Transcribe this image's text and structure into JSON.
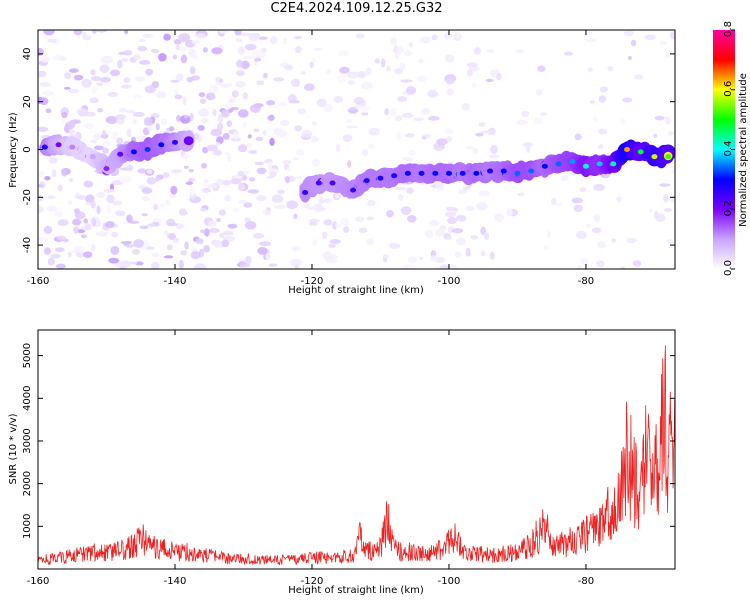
{
  "title": "C2E4.2024.109.12.25.G32",
  "chart_data": [
    {
      "type": "heatmap",
      "xlabel": "Height of straight line (km)",
      "ylabel": "Frequency (Hz)",
      "xlim": [
        -160,
        -67
      ],
      "ylim": [
        -50,
        50
      ],
      "xticks": [
        -160,
        -140,
        -120,
        -100,
        -80
      ],
      "yticks": [
        -40,
        -20,
        0,
        20,
        40
      ],
      "colorbar": {
        "label": "Normalized spectral amplitude",
        "range": [
          0,
          0.8
        ],
        "ticks": [
          0.0,
          0.2,
          0.4,
          0.6,
          0.8
        ],
        "tick_labels": [
          "0.0",
          "0.2",
          "0.4",
          "0.6",
          "0.8"
        ],
        "colors": [
          "#ffffff",
          "#c9a3ff",
          "#7a00ff",
          "#0000ff",
          "#00ffff",
          "#00ff00",
          "#ffff00",
          "#ff0000",
          "#ff00a0"
        ]
      },
      "ridge": [
        {
          "x": -159,
          "y": 1,
          "a": 0.28
        },
        {
          "x": -157,
          "y": 2,
          "a": 0.2
        },
        {
          "x": -155,
          "y": 1,
          "a": 0.12
        },
        {
          "x": -152,
          "y": -3,
          "a": 0.1
        },
        {
          "x": -150,
          "y": -8,
          "a": 0.18
        },
        {
          "x": -148,
          "y": -2,
          "a": 0.22
        },
        {
          "x": -146,
          "y": -1,
          "a": 0.3
        },
        {
          "x": -144,
          "y": 0,
          "a": 0.32
        },
        {
          "x": -142,
          "y": 2,
          "a": 0.3
        },
        {
          "x": -140,
          "y": 3,
          "a": 0.26
        },
        {
          "x": -138,
          "y": 4,
          "a": 0.2
        },
        {
          "x": -121,
          "y": -18,
          "a": 0.26
        },
        {
          "x": -119,
          "y": -14,
          "a": 0.24
        },
        {
          "x": -117,
          "y": -14,
          "a": 0.24
        },
        {
          "x": -114,
          "y": -17,
          "a": 0.26
        },
        {
          "x": -112,
          "y": -13,
          "a": 0.28
        },
        {
          "x": -110,
          "y": -12,
          "a": 0.28
        },
        {
          "x": -108,
          "y": -11,
          "a": 0.28
        },
        {
          "x": -106,
          "y": -10,
          "a": 0.3
        },
        {
          "x": -104,
          "y": -10,
          "a": 0.28
        },
        {
          "x": -102,
          "y": -10,
          "a": 0.3
        },
        {
          "x": -100,
          "y": -10,
          "a": 0.3
        },
        {
          "x": -98,
          "y": -10,
          "a": 0.28
        },
        {
          "x": -96,
          "y": -10,
          "a": 0.3
        },
        {
          "x": -94,
          "y": -9,
          "a": 0.28
        },
        {
          "x": -92,
          "y": -9,
          "a": 0.3
        },
        {
          "x": -90,
          "y": -10,
          "a": 0.34
        },
        {
          "x": -88,
          "y": -9,
          "a": 0.34
        },
        {
          "x": -86,
          "y": -7,
          "a": 0.3
        },
        {
          "x": -84,
          "y": -6,
          "a": 0.34
        },
        {
          "x": -82,
          "y": -5,
          "a": 0.36
        },
        {
          "x": -80,
          "y": -7,
          "a": 0.42
        },
        {
          "x": -78,
          "y": -6,
          "a": 0.38
        },
        {
          "x": -76,
          "y": -6,
          "a": 0.44
        },
        {
          "x": -74,
          "y": 0,
          "a": 0.64
        },
        {
          "x": -72,
          "y": -1,
          "a": 0.48
        },
        {
          "x": -70,
          "y": -3,
          "a": 0.58
        },
        {
          "x": -68,
          "y": -3,
          "a": 0.52
        }
      ]
    },
    {
      "type": "line",
      "xlabel": "Height of straight line (km)",
      "ylabel": "SNR (10 * v/v)",
      "xlim": [
        -160,
        -67
      ],
      "ylim": [
        0,
        5600
      ],
      "xticks": [
        -160,
        -140,
        -120,
        -100,
        -80
      ],
      "yticks": [
        1000,
        2000,
        3000,
        4000,
        5000
      ],
      "color": "#ee2020",
      "series": [
        {
          "x": [
            -160,
            -158,
            -156,
            -154,
            -152,
            -150,
            -148,
            -146,
            -145,
            -144,
            -142,
            -140,
            -138,
            -136,
            -134,
            -132,
            -130,
            -128,
            -126,
            -124,
            -122,
            -120,
            -118,
            -116,
            -114,
            -113,
            -112,
            -110,
            -109,
            -108,
            -106,
            -104,
            -102,
            -100,
            -99,
            -98,
            -96,
            -94,
            -92,
            -90,
            -88,
            -86,
            -85,
            -84,
            -82,
            -80,
            -79,
            -78,
            -77,
            -76,
            -75,
            -74,
            -73,
            -72,
            -71,
            -70,
            -69,
            -68.5,
            -68,
            -67.5,
            -67
          ],
          "y": [
            250,
            300,
            350,
            420,
            500,
            450,
            550,
            650,
            1000,
            700,
            600,
            500,
            500,
            400,
            350,
            300,
            300,
            280,
            250,
            270,
            280,
            350,
            320,
            350,
            400,
            900,
            500,
            600,
            1400,
            600,
            500,
            450,
            450,
            800,
            1000,
            500,
            450,
            400,
            450,
            500,
            700,
            1300,
            800,
            700,
            800,
            1000,
            1100,
            1200,
            1500,
            1800,
            2000,
            3500,
            2500,
            2200,
            3500,
            3000,
            4000,
            4800,
            2200,
            5600,
            3000
          ]
        }
      ]
    }
  ]
}
